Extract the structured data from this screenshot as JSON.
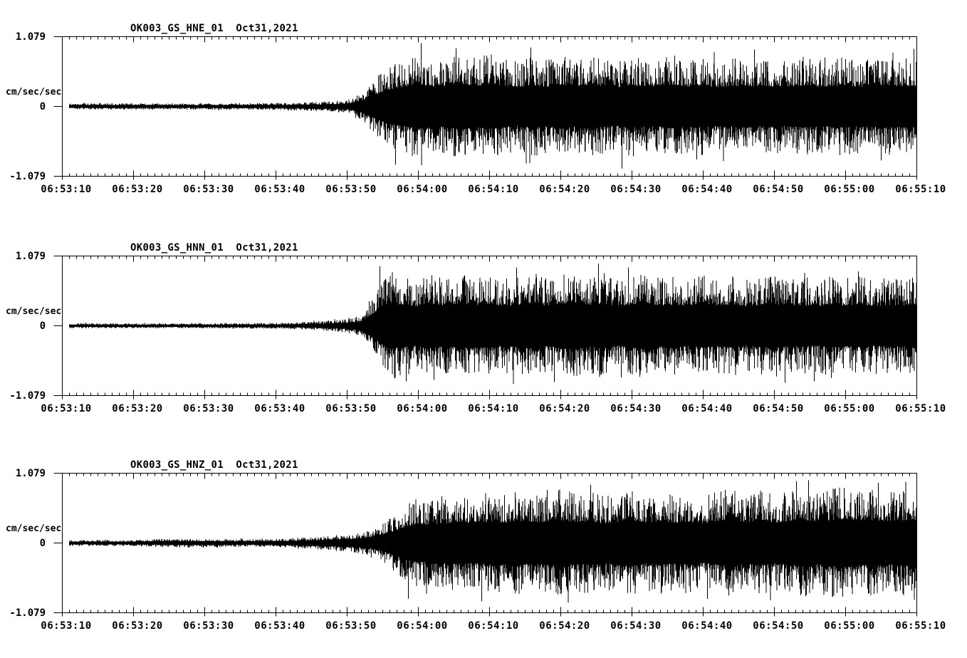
{
  "figure": {
    "bg_color": "#ffffff",
    "trace_color": "#000000",
    "axis_color": "#000000"
  },
  "time_axis": {
    "major_tick_labels": [
      "06:53:10",
      "06:53:20",
      "06:53:30",
      "06:53:40",
      "06:53:50",
      "06:54:00",
      "06:54:10",
      "06:54:20",
      "06:54:30",
      "06:54:40",
      "06:54:50",
      "06:55:00",
      "06:55:10"
    ],
    "major_interval_sec": 10,
    "minor_interval_sec": 1,
    "total_sec": 120
  },
  "amplitude_axis": {
    "label": "cm/sec/sec",
    "tick_labels": [
      "1.079",
      "0",
      "-1.079"
    ],
    "max": 1.079,
    "min": -1.079
  },
  "chart_data": [
    {
      "type": "seismogram",
      "title": "OK003_GS_HNE_01  Oct31,2021",
      "station_channel": "OK003_GS_HNE_01",
      "date": "Oct31,2021",
      "ylabel": "cm/sec/sec",
      "ylim": [
        -1.079,
        1.079
      ],
      "x_start": "06:53:10",
      "x_end": "06:55:10",
      "data_start_offset_sec": 1,
      "envelope_dt_sec": 2,
      "envelope": [
        0.05,
        0.05,
        0.05,
        0.05,
        0.05,
        0.05,
        0.05,
        0.05,
        0.05,
        0.05,
        0.05,
        0.05,
        0.05,
        0.05,
        0.055,
        0.055,
        0.06,
        0.065,
        0.07,
        0.08,
        0.1,
        0.2,
        0.45,
        0.62,
        0.72,
        0.82,
        0.72,
        0.75,
        0.85,
        0.75,
        0.82,
        0.74,
        0.7,
        0.78,
        0.72,
        0.8,
        0.74,
        0.82,
        0.74,
        0.7,
        0.78,
        0.72,
        0.74,
        0.8,
        0.72,
        0.77,
        0.7,
        0.74,
        0.77,
        0.72,
        0.74,
        0.7,
        0.77,
        0.72,
        0.74,
        0.77,
        0.72,
        0.74,
        0.77,
        0.74,
        0.76
      ],
      "notable_peaks": [
        [
          50.4,
          0.98
        ],
        [
          55.3,
          0.9
        ],
        [
          46.8,
          -0.9
        ],
        [
          78.6,
          -0.96
        ],
        [
          97.2,
          0.88
        ]
      ],
      "seed": 101
    },
    {
      "type": "seismogram",
      "title": "OK003_GS_HNN_01  Oct31,2021",
      "station_channel": "OK003_GS_HNN_01",
      "date": "Oct31,2021",
      "ylabel": "cm/sec/sec",
      "ylim": [
        -1.079,
        1.079
      ],
      "x_start": "06:53:10",
      "x_end": "06:55:10",
      "data_start_offset_sec": 1,
      "envelope_dt_sec": 2,
      "envelope": [
        0.04,
        0.04,
        0.04,
        0.04,
        0.04,
        0.04,
        0.04,
        0.04,
        0.04,
        0.04,
        0.04,
        0.04,
        0.04,
        0.045,
        0.045,
        0.045,
        0.05,
        0.06,
        0.07,
        0.085,
        0.11,
        0.16,
        0.5,
        0.85,
        0.76,
        0.72,
        0.8,
        0.74,
        0.82,
        0.76,
        0.8,
        0.72,
        0.78,
        0.84,
        0.74,
        0.8,
        0.86,
        0.76,
        0.82,
        0.72,
        0.78,
        0.84,
        0.74,
        0.78,
        0.72,
        0.8,
        0.74,
        0.78,
        0.72,
        0.76,
        0.8,
        0.72,
        0.76,
        0.72,
        0.78,
        0.74,
        0.78,
        0.72,
        0.76,
        0.74,
        0.78
      ],
      "notable_peaks": [
        [
          44.6,
          0.92
        ],
        [
          48.3,
          -0.86
        ],
        [
          63.8,
          0.9
        ],
        [
          75.3,
          0.96
        ],
        [
          101.5,
          -0.88
        ]
      ],
      "seed": 202
    },
    {
      "type": "seismogram",
      "title": "OK003_GS_HNZ_01  Oct31,2021",
      "station_channel": "OK003_GS_HNZ_01",
      "date": "Oct31,2021",
      "ylabel": "cm/sec/sec",
      "ylim": [
        -1.079,
        1.079
      ],
      "x_start": "06:53:10",
      "x_end": "06:55:10",
      "data_start_offset_sec": 1,
      "envelope_dt_sec": 2,
      "envelope": [
        0.045,
        0.045,
        0.045,
        0.045,
        0.045,
        0.05,
        0.055,
        0.065,
        0.07,
        0.07,
        0.065,
        0.065,
        0.06,
        0.06,
        0.06,
        0.065,
        0.075,
        0.09,
        0.1,
        0.12,
        0.14,
        0.17,
        0.22,
        0.38,
        0.58,
        0.7,
        0.66,
        0.72,
        0.78,
        0.72,
        0.8,
        0.74,
        0.8,
        0.74,
        0.78,
        0.84,
        0.76,
        0.8,
        0.72,
        0.78,
        0.84,
        0.74,
        0.8,
        0.74,
        0.78,
        0.72,
        0.8,
        0.86,
        0.76,
        0.82,
        0.74,
        0.8,
        0.86,
        0.78,
        0.84,
        0.88,
        0.8,
        0.84,
        0.78,
        0.82,
        0.84
      ],
      "notable_peaks": [
        [
          48.6,
          -0.86
        ],
        [
          58.9,
          -0.9
        ],
        [
          74.2,
          0.9
        ],
        [
          104.8,
          0.97
        ],
        [
          114.6,
          0.93
        ]
      ],
      "seed": 303
    }
  ]
}
